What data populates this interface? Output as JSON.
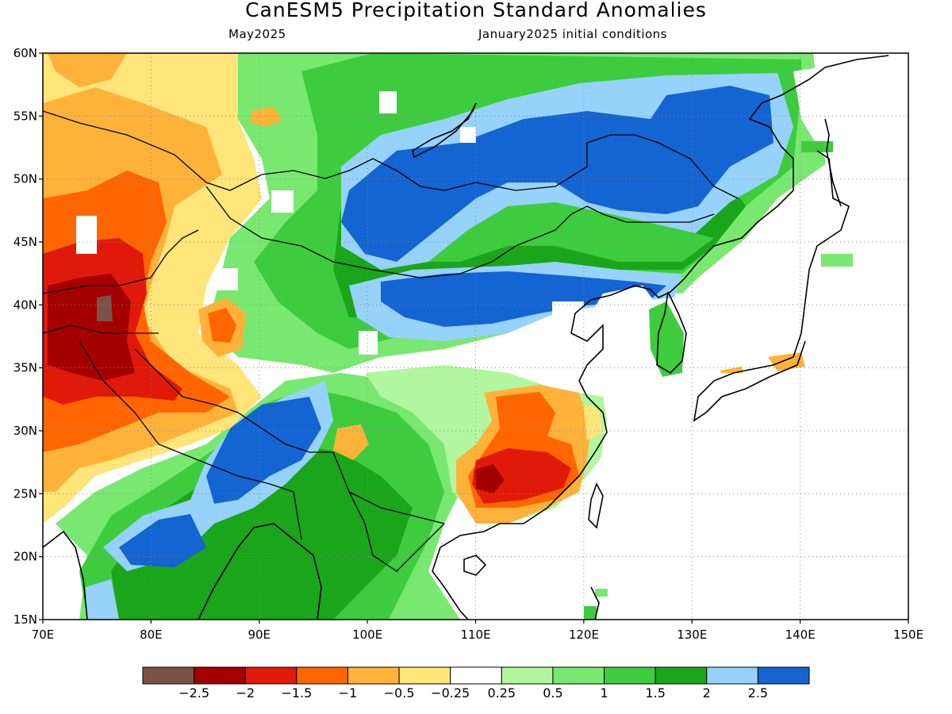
{
  "title": "CanESM5 Precipitation Standard Anomalies",
  "subtitle_left": "May2025",
  "subtitle_right": "January2025 initial conditions",
  "map": {
    "lon_range": [
      70,
      150
    ],
    "lat_range": [
      15,
      60
    ],
    "lon_ticks": [
      "70E",
      "80E",
      "90E",
      "100E",
      "110E",
      "120E",
      "130E",
      "140E",
      "150E"
    ],
    "lat_ticks": [
      "15N",
      "20N",
      "25N",
      "30N",
      "35N",
      "40N",
      "45N",
      "50N",
      "55N",
      "60N"
    ],
    "grid": "dotted"
  },
  "colorbar": {
    "colors": [
      "#7a5348",
      "#a50000",
      "#e01a0a",
      "#ff6600",
      "#ffb23a",
      "#ffe57a",
      "#ffffff",
      "#b2f7a0",
      "#78e870",
      "#3ecc3e",
      "#1aa51a",
      "#96d2fa",
      "#1464d2"
    ],
    "labels": [
      "−2.5",
      "−2",
      "−1.5",
      "−1",
      "−0.5",
      "−0.25",
      "0.25",
      "0.5",
      "1",
      "1.5",
      "2",
      "2.5"
    ]
  },
  "anomaly_regions": [
    {
      "name": "northern china mongolia wet",
      "level": 2.5,
      "color": "#1464d2"
    },
    {
      "name": "inner mongolia wet",
      "level": 2.5,
      "color": "#1464d2"
    },
    {
      "name": "amur russian far east wet",
      "level": 2.5,
      "color": "#1464d2"
    },
    {
      "name": "central india wet",
      "level": 2.5,
      "color": "#1464d2"
    },
    {
      "name": "eastern tibet wet",
      "level": 2.5,
      "color": "#1464d2"
    },
    {
      "name": "western central asia dry",
      "level": -2.5,
      "color": "#7a5348"
    },
    {
      "name": "southeast china dry",
      "level": -2.0,
      "color": "#a50000"
    },
    {
      "name": "tarim basin dry",
      "level": -1.0,
      "color": "#ffb23a"
    }
  ]
}
